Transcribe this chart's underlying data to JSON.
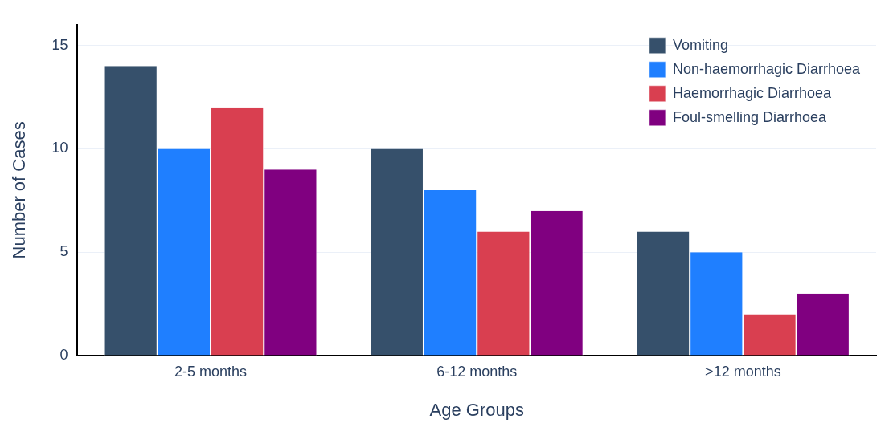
{
  "chart_data": {
    "type": "bar",
    "xlabel": "Age Groups",
    "ylabel": "Number of Cases",
    "categories": [
      "2-5 months",
      "6-12 months",
      ">12 months"
    ],
    "series": [
      {
        "name": "Vomiting",
        "color": "#36506b",
        "values": [
          14,
          10,
          6
        ]
      },
      {
        "name": "Non-haemorrhagic Diarrhoea",
        "color": "#1f7fff",
        "values": [
          10,
          8,
          5
        ]
      },
      {
        "name": "Haemorrhagic Diarrhoea",
        "color": "#d93f50",
        "values": [
          12,
          6,
          2
        ]
      },
      {
        "name": "Foul-smelling Diarrhoea",
        "color": "#800080",
        "values": [
          9,
          7,
          3
        ]
      }
    ],
    "ylim": [
      0,
      16
    ],
    "yticks": [
      0,
      5,
      10,
      15
    ],
    "grid": "y",
    "legend": "top right"
  }
}
